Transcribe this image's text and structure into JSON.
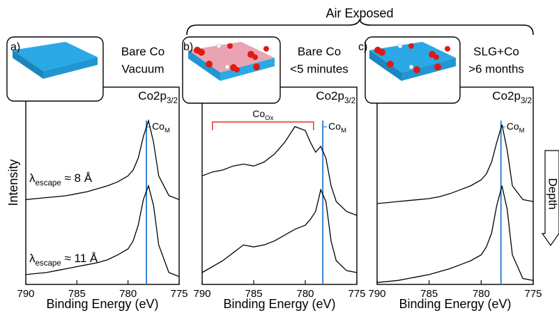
{
  "header": {
    "title": "Air Exposed"
  },
  "depth_label": "Depth",
  "chart_data": [
    {
      "type": "line",
      "panel_label": "a)",
      "title_lines": [
        "Bare Co",
        "Vacuum"
      ],
      "peak_label": {
        "main": "Co2p",
        "sub": "3/2"
      },
      "ylabel": "Intensity",
      "xlabel": "Binding Energy (eV)",
      "xlim": [
        790,
        775
      ],
      "xticks": [
        790,
        785,
        780,
        775
      ],
      "ylim": [
        0,
        100
      ],
      "x": [
        790,
        789,
        788,
        787,
        786,
        785,
        784,
        783,
        782,
        781,
        780,
        779.5,
        779,
        778.5,
        778,
        777.5,
        777,
        776,
        775
      ],
      "series": [
        {
          "color": "#000000",
          "label": {
            "pre": "λ",
            "sub": "escape",
            "post": " ≈ 8 Å"
          },
          "values": [
            43,
            43.5,
            44,
            44.5,
            45,
            46,
            47,
            48.5,
            50,
            52,
            55,
            58,
            64,
            75,
            83,
            72,
            55,
            45,
            43
          ]
        },
        {
          "color": "#000000",
          "label": {
            "pre": "λ",
            "sub": "escape",
            "post": " ≈ 11 Å"
          },
          "values": [
            5,
            5.5,
            6,
            7,
            8,
            9,
            10,
            11,
            12.5,
            15,
            18,
            22,
            30,
            43,
            50,
            40,
            20,
            6,
            4
          ]
        }
      ],
      "vline": {
        "value": 778.2,
        "color": "#1f78d1",
        "label": {
          "main": "Co",
          "sub": "M"
        }
      }
    },
    {
      "type": "line",
      "panel_label": "b)",
      "title_lines": [
        "Bare Co",
        "<5 minutes"
      ],
      "peak_label": {
        "main": "Co2p",
        "sub": "3/2"
      },
      "xlabel": "Binding Energy (eV)",
      "xlim": [
        790,
        775
      ],
      "xticks": [
        790,
        785,
        780,
        775
      ],
      "ylim": [
        0,
        100
      ],
      "x": [
        790,
        789,
        788,
        787,
        786,
        785,
        784,
        783,
        782,
        781,
        780,
        779.5,
        779,
        778.5,
        778,
        777.5,
        777,
        776,
        775
      ],
      "series": [
        {
          "color": "#000000",
          "values": [
            55,
            57,
            58,
            60,
            61,
            60,
            62,
            66,
            72,
            80,
            78,
            72,
            67,
            70,
            64,
            50,
            42,
            37,
            35
          ]
        },
        {
          "color": "#000000",
          "values": [
            6,
            9,
            12,
            16,
            20,
            19,
            20,
            22,
            25,
            28,
            30,
            33,
            37,
            48,
            42,
            22,
            12,
            7,
            6
          ]
        }
      ],
      "vline": {
        "value": 778.3,
        "color": "#1f78d1",
        "label": {
          "main": "Co",
          "sub": "M"
        }
      },
      "bracket": {
        "range": [
          789,
          779.2
        ],
        "color": "#e0301e",
        "label": {
          "main": "Co",
          "sub": "Ox"
        }
      }
    },
    {
      "type": "line",
      "panel_label": "c)",
      "title_lines": [
        "SLG+Co",
        ">6 months"
      ],
      "peak_label": {
        "main": "Co2p",
        "sub": "3/2"
      },
      "xlabel": "Binding Energy (eV)",
      "xlim": [
        790,
        775
      ],
      "xticks": [
        790,
        785,
        780,
        775
      ],
      "ylim": [
        0,
        100
      ],
      "x": [
        790,
        789,
        788,
        787,
        786,
        785,
        784,
        783,
        782,
        781,
        780,
        779.5,
        779,
        778.5,
        778,
        777.5,
        777,
        776,
        775
      ],
      "series": [
        {
          "color": "#000000",
          "values": [
            41,
            41.5,
            42,
            42.5,
            43,
            43.5,
            44.5,
            46,
            48,
            50,
            53,
            56,
            62,
            72,
            81,
            68,
            50,
            43,
            42
          ]
        },
        {
          "color": "#000000",
          "values": [
            1,
            1.5,
            2,
            3,
            4,
            5,
            6.5,
            8,
            10,
            12,
            15,
            19,
            26,
            40,
            50,
            38,
            15,
            3,
            2
          ]
        }
      ],
      "vline": {
        "value": 778.1,
        "color": "#1f78d1",
        "label": {
          "main": "Co",
          "sub": "M"
        }
      }
    }
  ]
}
